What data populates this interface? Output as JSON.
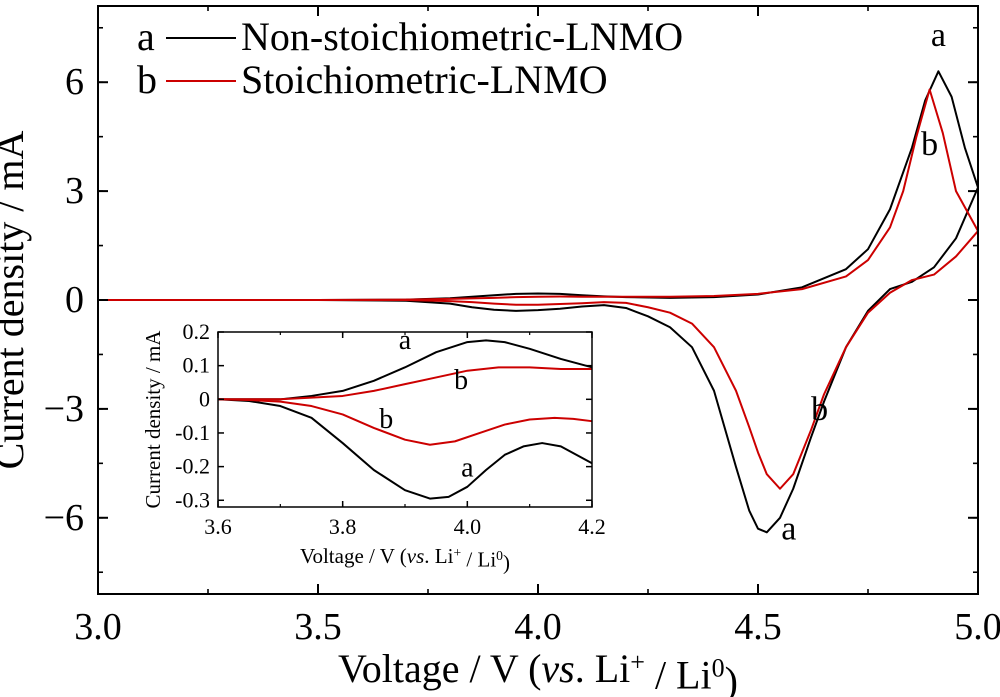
{
  "chart_data": [
    {
      "type": "line",
      "xlabel": {
        "prefix": "Voltage / V (",
        "vs": "vs",
        "mid": ". Li",
        "sup1": "+",
        "mid2": " / Li",
        "sup2": "0",
        "suffix": ")"
      },
      "ylabel": "Current density / mA",
      "xlim": [
        3.0,
        5.0
      ],
      "ylim": [
        -8.1,
        8.1
      ],
      "xticks": [
        3.0,
        3.5,
        4.0,
        4.5,
        5.0
      ],
      "xtick_labels": [
        "3.0",
        "3.5",
        "4.0",
        "4.5",
        "5.0"
      ],
      "yticks": [
        -6,
        -3,
        0,
        3,
        6
      ],
      "ytick_labels": [
        "−6",
        "−3",
        "0",
        "3",
        "6"
      ],
      "legend": {
        "position": "top-left",
        "entries": [
          {
            "tag": "a",
            "label": "Non-stoichiometric-LNMO",
            "color": "#000000"
          },
          {
            "tag": "b",
            "label": "Stoichiometric-LNMO",
            "color": "#cc0000"
          }
        ]
      },
      "series": [
        {
          "name": "Non-stoichiometric-LNMO",
          "tag": "a",
          "color": "#000000",
          "oxidation": {
            "x": [
              3.0,
              3.5,
              3.7,
              3.8,
              3.9,
              3.95,
              4.0,
              4.05,
              4.1,
              4.15,
              4.2,
              4.3,
              4.4,
              4.5,
              4.6,
              4.7,
              4.75,
              4.8,
              4.85,
              4.88,
              4.91,
              4.94,
              4.97,
              5.0
            ],
            "y": [
              0.0,
              0.0,
              0.01,
              0.05,
              0.13,
              0.17,
              0.18,
              0.17,
              0.13,
              0.1,
              0.08,
              0.06,
              0.08,
              0.15,
              0.35,
              0.85,
              1.4,
              2.5,
              4.2,
              5.5,
              6.3,
              5.6,
              4.2,
              3.1
            ]
          },
          "reduction": {
            "x": [
              5.0,
              4.95,
              4.9,
              4.85,
              4.8,
              4.75,
              4.7,
              4.65,
              4.62,
              4.58,
              4.55,
              4.52,
              4.5,
              4.48,
              4.45,
              4.4,
              4.35,
              4.3,
              4.25,
              4.2,
              4.15,
              4.1,
              4.05,
              4.0,
              3.95,
              3.9,
              3.85,
              3.8,
              3.7,
              3.5,
              3.0
            ],
            "y": [
              3.1,
              1.7,
              0.9,
              0.5,
              0.3,
              -0.3,
              -1.3,
              -2.8,
              -3.8,
              -5.2,
              -6.0,
              -6.4,
              -6.3,
              -5.8,
              -4.6,
              -2.5,
              -1.3,
              -0.75,
              -0.45,
              -0.22,
              -0.14,
              -0.18,
              -0.24,
              -0.28,
              -0.3,
              -0.27,
              -0.2,
              -0.1,
              -0.02,
              0.0,
              0.0
            ]
          }
        },
        {
          "name": "Stoichiometric-LNMO",
          "tag": "b",
          "color": "#cc0000",
          "oxidation": {
            "x": [
              3.0,
              3.5,
              3.7,
              3.8,
              3.9,
              3.95,
              4.0,
              4.05,
              4.1,
              4.15,
              4.2,
              4.3,
              4.4,
              4.5,
              4.6,
              4.7,
              4.75,
              4.8,
              4.83,
              4.86,
              4.89,
              4.92,
              4.95,
              5.0
            ],
            "y": [
              0.0,
              0.0,
              0.01,
              0.03,
              0.06,
              0.08,
              0.09,
              0.095,
              0.09,
              0.09,
              0.09,
              0.09,
              0.11,
              0.17,
              0.3,
              0.65,
              1.1,
              2.0,
              3.0,
              4.5,
              5.8,
              4.6,
              3.0,
              1.9
            ]
          },
          "reduction": {
            "x": [
              5.0,
              4.95,
              4.9,
              4.85,
              4.8,
              4.75,
              4.7,
              4.65,
              4.62,
              4.58,
              4.55,
              4.52,
              4.5,
              4.48,
              4.45,
              4.4,
              4.35,
              4.3,
              4.25,
              4.2,
              4.15,
              4.1,
              4.05,
              4.0,
              3.95,
              3.9,
              3.85,
              3.8,
              3.7,
              3.5,
              3.0
            ],
            "y": [
              1.9,
              1.2,
              0.7,
              0.55,
              0.2,
              -0.35,
              -1.3,
              -2.6,
              -3.6,
              -4.8,
              -5.2,
              -4.8,
              -4.2,
              -3.5,
              -2.5,
              -1.3,
              -0.65,
              -0.35,
              -0.2,
              -0.08,
              -0.06,
              -0.09,
              -0.11,
              -0.13,
              -0.13,
              -0.1,
              -0.06,
              -0.03,
              0.0,
              0.0,
              0.0
            ]
          }
        }
      ],
      "curve_labels": [
        {
          "text": "a",
          "x": 4.91,
          "y": 7.0
        },
        {
          "text": "b",
          "x": 4.89,
          "y": 4.0
        },
        {
          "text": "b",
          "x": 4.64,
          "y": -3.3
        },
        {
          "text": "a",
          "x": 4.57,
          "y": -6.6
        }
      ]
    },
    {
      "type": "line",
      "role": "inset",
      "xlabel": {
        "prefix": "Voltage / V (",
        "vs": "vs",
        "mid": ". Li",
        "sup1": "+",
        "mid2": " / Li",
        "sup2": "0",
        "suffix": ")"
      },
      "ylabel": "Current density / mA",
      "xlim": [
        3.6,
        4.2
      ],
      "ylim": [
        -0.32,
        0.2
      ],
      "xticks": [
        3.6,
        3.8,
        4.0,
        4.2
      ],
      "xtick_labels": [
        "3.6",
        "3.8",
        "4.0",
        "4.2"
      ],
      "yticks": [
        -0.3,
        -0.2,
        -0.1,
        0,
        0.1,
        0.2
      ],
      "ytick_labels": [
        "-0.3",
        "-0.2",
        "-0.1",
        "0",
        "0.1",
        "0.2"
      ],
      "series": [
        {
          "name": "Non-stoichiometric-LNMO",
          "tag": "a",
          "color": "#000000",
          "oxidation": {
            "x": [
              3.6,
              3.7,
              3.75,
              3.8,
              3.85,
              3.9,
              3.95,
              4.0,
              4.03,
              4.06,
              4.1,
              4.15,
              4.2
            ],
            "y": [
              0.0,
              0.0,
              0.01,
              0.025,
              0.055,
              0.095,
              0.14,
              0.17,
              0.175,
              0.17,
              0.15,
              0.12,
              0.095
            ]
          },
          "reduction": {
            "x": [
              3.6,
              3.65,
              3.7,
              3.75,
              3.8,
              3.85,
              3.9,
              3.94,
              3.97,
              4.0,
              4.03,
              4.06,
              4.09,
              4.12,
              4.15,
              4.18,
              4.2
            ],
            "y": [
              0.0,
              -0.005,
              -0.02,
              -0.055,
              -0.13,
              -0.21,
              -0.27,
              -0.295,
              -0.29,
              -0.26,
              -0.21,
              -0.165,
              -0.14,
              -0.13,
              -0.14,
              -0.17,
              -0.19
            ]
          }
        },
        {
          "name": "Stoichiometric-LNMO",
          "tag": "b",
          "color": "#cc0000",
          "oxidation": {
            "x": [
              3.6,
              3.7,
              3.75,
              3.8,
              3.85,
              3.9,
              3.95,
              4.0,
              4.05,
              4.1,
              4.15,
              4.2
            ],
            "y": [
              0.0,
              0.0,
              0.005,
              0.01,
              0.025,
              0.045,
              0.065,
              0.085,
              0.095,
              0.095,
              0.09,
              0.09
            ]
          },
          "reduction": {
            "x": [
              3.6,
              3.65,
              3.7,
              3.75,
              3.8,
              3.85,
              3.9,
              3.94,
              3.98,
              4.02,
              4.06,
              4.1,
              4.14,
              4.17,
              4.2
            ],
            "y": [
              0.0,
              -0.002,
              -0.007,
              -0.02,
              -0.045,
              -0.085,
              -0.12,
              -0.135,
              -0.125,
              -0.1,
              -0.075,
              -0.06,
              -0.055,
              -0.058,
              -0.065
            ]
          }
        }
      ],
      "curve_labels": [
        {
          "text": "a",
          "x": 3.9,
          "y": 0.15
        },
        {
          "text": "b",
          "x": 3.99,
          "y": 0.03
        },
        {
          "text": "b",
          "x": 3.87,
          "y": -0.085
        },
        {
          "text": "a",
          "x": 4.0,
          "y": -0.23
        }
      ]
    }
  ]
}
